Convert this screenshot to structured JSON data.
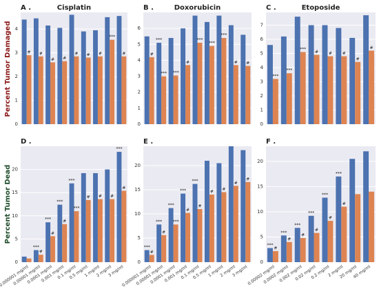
{
  "y_label_top": "Percent Tumor Damaged",
  "y_label_bottom": "Percent Tumor Dead",
  "chart_data": [
    {
      "type": "bar",
      "panel": "A .",
      "title": "Cisplatin",
      "ylim": [
        0,
        4.7
      ],
      "yticks": [
        0,
        1,
        2,
        3,
        4
      ],
      "grid": true,
      "categories": [
        null,
        null,
        null,
        null,
        null,
        null,
        null,
        null,
        null
      ],
      "series": [
        {
          "color": "#4c72b0",
          "values": [
            4.4,
            4.45,
            4.15,
            4.05,
            4.6,
            3.9,
            3.95,
            4.5,
            4.55
          ],
          "annotations": [
            null,
            null,
            null,
            null,
            null,
            null,
            null,
            null,
            null
          ]
        },
        {
          "color": "#dd8452",
          "values": [
            2.9,
            2.85,
            2.6,
            2.65,
            2.85,
            2.8,
            2.85,
            3.55,
            2.85
          ],
          "annotations": [
            "#",
            "#",
            "#",
            "#",
            "#",
            "#",
            "#",
            "***",
            "#"
          ]
        }
      ]
    },
    {
      "type": "bar",
      "panel": "B .",
      "title": "Doxorubicin",
      "ylim": [
        0,
        7
      ],
      "yticks": [
        0,
        1,
        2,
        3,
        4,
        5,
        6
      ],
      "grid": true,
      "categories": [
        null,
        null,
        null,
        null,
        null,
        null,
        null,
        null,
        null
      ],
      "series": [
        {
          "color": "#4c72b0",
          "values": [
            5.5,
            5.1,
            5.4,
            6.0,
            6.8,
            6.4,
            6.8,
            6.2,
            5.6
          ],
          "annotations": [
            null,
            "***",
            null,
            null,
            null,
            null,
            null,
            null,
            null
          ]
        },
        {
          "color": "#dd8452",
          "values": [
            4.2,
            3.0,
            3.05,
            3.7,
            5.1,
            4.9,
            5.4,
            3.7,
            3.65
          ],
          "annotations": [
            "#",
            "***",
            "***",
            "#",
            "***",
            "***",
            "***",
            "#",
            "#"
          ]
        }
      ]
    },
    {
      "type": "bar",
      "panel": "C .",
      "title": "Etoposide",
      "ylim": [
        0,
        7.9
      ],
      "yticks": [
        0,
        1,
        2,
        3,
        4,
        5,
        6,
        7
      ],
      "grid": true,
      "categories": [
        null,
        null,
        null,
        null,
        null,
        null,
        null,
        null
      ],
      "series": [
        {
          "color": "#4c72b0",
          "values": [
            5.6,
            6.2,
            7.6,
            7.0,
            7.0,
            6.8,
            6.1,
            7.7
          ],
          "annotations": [
            null,
            null,
            null,
            null,
            null,
            null,
            null,
            null
          ]
        },
        {
          "color": "#dd8452",
          "values": [
            3.2,
            3.6,
            5.1,
            4.9,
            4.8,
            4.8,
            4.4,
            5.2
          ],
          "annotations": [
            "***",
            "***",
            "***",
            "#",
            "#",
            "#",
            "#",
            "#"
          ]
        }
      ]
    },
    {
      "type": "bar",
      "panel": "D .",
      "ylim": [
        0,
        25
      ],
      "yticks": [
        0,
        5,
        10,
        15,
        20
      ],
      "grid": true,
      "categories": [
        "0.000001 mg/ml",
        "0.00001 mg/ml",
        "0.0001 mg/ml",
        "0.001 mg/ml",
        "0.1 mg/ml",
        "0.5 mg/ml",
        "1 mg/ml",
        "2 mg/ml",
        "3 mg/ml"
      ],
      "series": [
        {
          "color": "#4c72b0",
          "values": [
            1.2,
            2.6,
            8.6,
            12.4,
            17.0,
            19.2,
            19.2,
            20.0,
            23.8
          ],
          "annotations": [
            null,
            "***",
            "***",
            "***",
            "***",
            null,
            null,
            null,
            "***"
          ]
        },
        {
          "color": "#dd8452",
          "values": [
            0.8,
            1.6,
            5.6,
            8.2,
            11.0,
            13.4,
            13.6,
            13.6,
            15.4
          ],
          "annotations": [
            null,
            "#",
            "#",
            "#",
            "***",
            "#",
            "#",
            "#",
            "#"
          ]
        }
      ]
    },
    {
      "type": "bar",
      "panel": "E .",
      "ylim": [
        0,
        24
      ],
      "yticks": [
        0,
        5,
        10,
        15,
        20
      ],
      "grid": true,
      "categories": [
        "0.000001 mg/ml",
        "0.00001 mg/ml",
        "0.0001 mg/ml",
        "0.001 mg/ml",
        "0.1 mg/ml",
        "0.5 mg/ml",
        "1 mg/ml",
        "2 mg/ml",
        "3 mg/ml"
      ],
      "series": [
        {
          "color": "#4c72b0",
          "values": [
            2.5,
            7.8,
            11.2,
            14.2,
            16.2,
            21.0,
            20.5,
            24.0,
            23.2
          ],
          "annotations": [
            "***",
            "***",
            "***",
            "***",
            "***",
            null,
            null,
            null,
            null
          ]
        },
        {
          "color": "#dd8452",
          "values": [
            1.5,
            5.6,
            7.8,
            10.2,
            11.0,
            14.0,
            14.5,
            15.8,
            16.6
          ],
          "annotations": [
            "#",
            "#",
            "***",
            "#",
            "#",
            "#",
            "#",
            "#",
            "#"
          ]
        }
      ]
    },
    {
      "type": "bar",
      "panel": "F .",
      "ylim": [
        0,
        23
      ],
      "yticks": [
        0,
        5,
        10,
        15,
        20
      ],
      "grid": true,
      "categories": [
        "0.00002 mg/ml",
        "0.0002 mg/ml",
        "0.002 mg/ml",
        "0.02 mg/ml",
        "0.2 mg/ml",
        "2 mg/ml",
        "20 mg/ml",
        "40 mg/ml"
      ],
      "series": [
        {
          "color": "#4c72b0",
          "values": [
            2.8,
            5.3,
            6.8,
            9.2,
            12.8,
            17.0,
            20.5,
            22.0
          ],
          "annotations": [
            "***",
            "***",
            "***",
            "***",
            "***",
            "***",
            null,
            null
          ]
        },
        {
          "color": "#dd8452",
          "values": [
            2.2,
            4.0,
            4.8,
            5.8,
            8.2,
            11.0,
            13.5,
            14.0
          ],
          "annotations": [
            "#",
            "#",
            "#",
            "#",
            "#",
            "#",
            null,
            null
          ]
        }
      ]
    }
  ]
}
